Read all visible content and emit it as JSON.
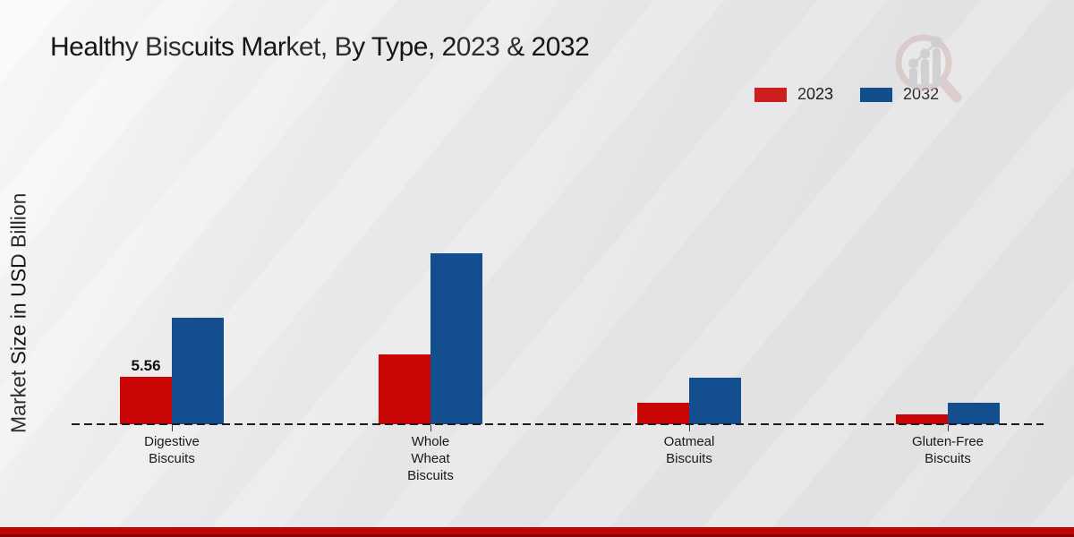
{
  "title": "Healthy Biscuits Market, By Type, 2023 & 2032",
  "ylabel": "Market Size in USD Billion",
  "legend": [
    {
      "label": "2023",
      "color": "#c90505"
    },
    {
      "label": "2032",
      "color": "#134f8e"
    }
  ],
  "chart_data": {
    "type": "bar",
    "title": "Healthy Biscuits Market, By Type, 2023 & 2032",
    "xlabel": "",
    "ylabel": "Market Size in USD Billion",
    "categories": [
      "Digestive\nBiscuits",
      "Whole\nWheat\nBiscuits",
      "Oatmeal\nBiscuits",
      "Gluten-Free\nBiscuits"
    ],
    "series": [
      {
        "name": "2023",
        "color": "#c90505",
        "values": [
          5.56,
          8.2,
          2.5,
          1.2
        ]
      },
      {
        "name": "2032",
        "color": "#134f8e",
        "values": [
          12.5,
          20.0,
          5.5,
          2.5
        ]
      }
    ],
    "data_labels": [
      {
        "category_index": 0,
        "series": "2023",
        "text": "5.56"
      }
    ],
    "ylim": [
      0,
      22
    ],
    "grid": false,
    "legend_position": "top-right",
    "baseline_style": "dashed",
    "units": "USD Billion"
  },
  "footer": {
    "band_color": "#c10404",
    "band_edge_color": "#8a0404"
  },
  "logo": {
    "name": "market-research-magnifier-logo"
  }
}
